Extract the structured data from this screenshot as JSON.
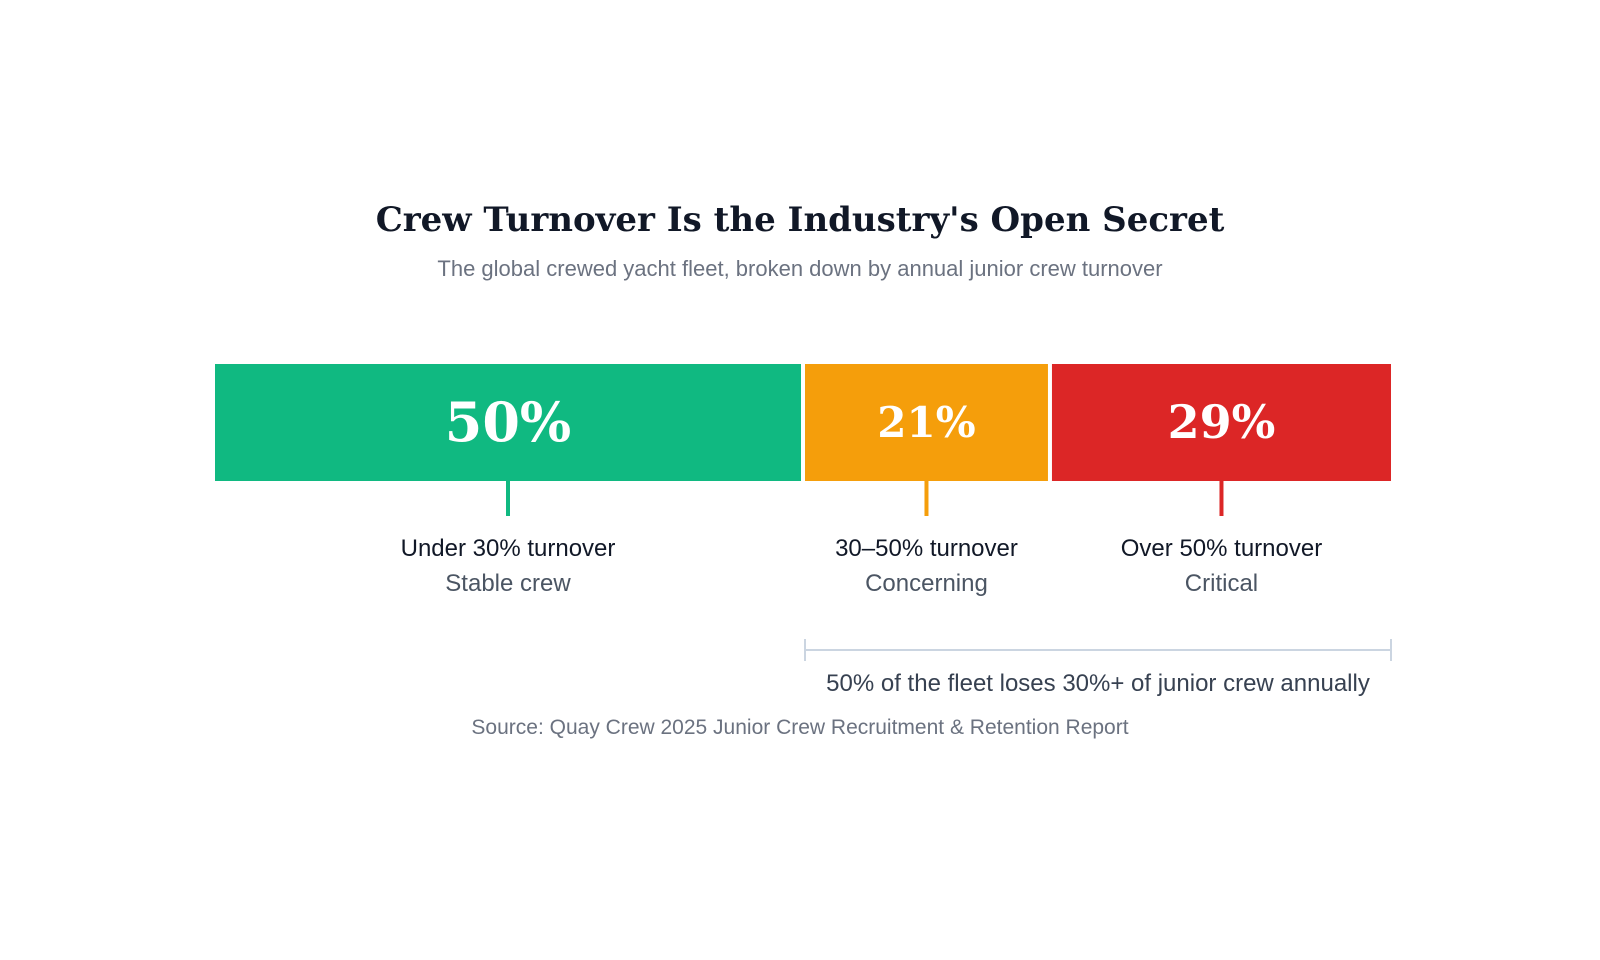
{
  "title": "Crew Turnover Is the Industry's Open Secret",
  "subtitle": "The global crewed yacht fleet, broken down by annual junior crew turnover",
  "source": "Source: Quay Crew 2025 Junior Crew Recruitment & Retention Report",
  "chart_data": {
    "type": "bar",
    "orientation": "horizontal-stacked",
    "unit": "%",
    "total": 100,
    "categories": [
      "Under 30% turnover",
      "30–50% turnover",
      "Over 50% turnover"
    ],
    "segments": [
      {
        "value": 50,
        "label": "50%",
        "name": "Under 30% turnover",
        "description": "Stable crew",
        "color": "#10b981"
      },
      {
        "value": 21,
        "label": "21%",
        "name": "30–50% turnover",
        "description": "Concerning",
        "color": "#f59e0b"
      },
      {
        "value": 29,
        "label": "29%",
        "name": "Over 50% turnover",
        "description": "Critical",
        "color": "#dc2626"
      }
    ],
    "annotation": {
      "text": "50% of the fleet loses 30%+ of junior crew annually",
      "from_segment": 1,
      "to_segment": 2,
      "color": "#cbd5e1"
    },
    "legend": "none",
    "grid": false
  }
}
